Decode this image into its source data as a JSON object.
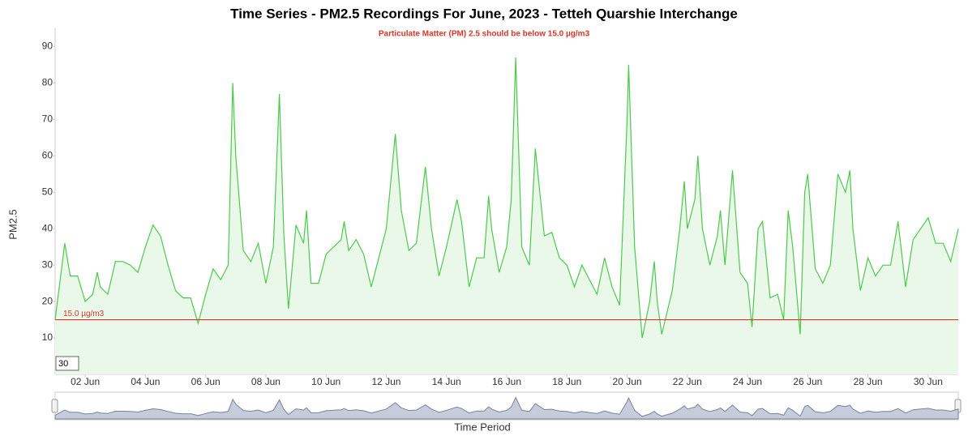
{
  "chart_data": {
    "type": "line",
    "title": "Time Series - PM2.5 Recordings For June, 2023 - Tetteh Quarshie Interchange",
    "subtitle": "Particulate Matter (PM) 2.5 should be below 15.0 µg/m3",
    "y_label": "PM2.5",
    "x_label": "Time Period",
    "range_label": "30",
    "color": "#4cc94c",
    "fill_color": "#eaf8ea",
    "threshold": {
      "value": 15,
      "label": "15.0 µg/m3",
      "color": "#d9352a"
    },
    "xlim": [
      1,
      31
    ],
    "ylim": [
      0,
      95
    ],
    "yticks": [
      10,
      20,
      30,
      40,
      50,
      60,
      70,
      80,
      90
    ],
    "xticks": [
      {
        "value": 2,
        "label": "02 Jun"
      },
      {
        "value": 4,
        "label": "04 Jun"
      },
      {
        "value": 6,
        "label": "06 Jun"
      },
      {
        "value": 8,
        "label": "08 Jun"
      },
      {
        "value": 10,
        "label": "10 Jun"
      },
      {
        "value": 12,
        "label": "12 Jun"
      },
      {
        "value": 14,
        "label": "14 Jun"
      },
      {
        "value": 16,
        "label": "16 Jun"
      },
      {
        "value": 18,
        "label": "18 Jun"
      },
      {
        "value": 20,
        "label": "20 Jun"
      },
      {
        "value": 22,
        "label": "22 Jun"
      },
      {
        "value": 24,
        "label": "24 Jun"
      },
      {
        "value": 26,
        "label": "26 Jun"
      },
      {
        "value": 28,
        "label": "28 Jun"
      },
      {
        "value": 30,
        "label": "30 Jun"
      }
    ],
    "x": [
      1.0,
      1.32,
      1.5,
      1.75,
      2.0,
      2.25,
      2.4,
      2.5,
      2.75,
      3.0,
      3.25,
      3.5,
      3.75,
      4.0,
      4.25,
      4.5,
      4.75,
      5.0,
      5.25,
      5.5,
      5.75,
      6.0,
      6.25,
      6.5,
      6.75,
      6.9,
      7.0,
      7.25,
      7.5,
      7.75,
      8.0,
      8.25,
      8.45,
      8.6,
      8.75,
      9.0,
      9.25,
      9.35,
      9.5,
      9.75,
      10.0,
      10.25,
      10.5,
      10.6,
      10.75,
      11.0,
      11.25,
      11.5,
      11.75,
      12.0,
      12.3,
      12.5,
      12.75,
      13.0,
      13.3,
      13.5,
      13.75,
      14.0,
      14.35,
      14.5,
      14.75,
      15.0,
      15.25,
      15.4,
      15.5,
      15.75,
      16.0,
      16.15,
      16.3,
      16.5,
      16.75,
      16.95,
      17.25,
      17.5,
      17.75,
      18.0,
      18.25,
      18.5,
      18.75,
      19.0,
      19.25,
      19.5,
      19.75,
      20.0,
      20.05,
      20.25,
      20.5,
      20.75,
      20.9,
      21.0,
      21.15,
      21.5,
      21.75,
      21.9,
      22.0,
      22.25,
      22.35,
      22.5,
      22.75,
      23.0,
      23.1,
      23.25,
      23.5,
      23.75,
      24.0,
      24.15,
      24.35,
      24.5,
      24.75,
      25.0,
      25.2,
      25.35,
      25.5,
      25.75,
      25.9,
      26.0,
      26.25,
      26.5,
      26.75,
      27.0,
      27.25,
      27.4,
      27.5,
      27.75,
      28.0,
      28.25,
      28.5,
      28.75,
      29.0,
      29.25,
      29.5,
      29.75,
      30.0,
      30.25,
      30.5,
      30.75,
      31.0
    ],
    "values": [
      15,
      36,
      27,
      27,
      20,
      22,
      28,
      24,
      22,
      31,
      31,
      30,
      28,
      35,
      41,
      38,
      30,
      23,
      21,
      21,
      14,
      22,
      29,
      26,
      30,
      80,
      60,
      34,
      31,
      36,
      25,
      35,
      77,
      38,
      18,
      41,
      36,
      45,
      25,
      25,
      33,
      35,
      37,
      42,
      34,
      37,
      33,
      24,
      32,
      40,
      66,
      45,
      34,
      36,
      57,
      40,
      27,
      35,
      48,
      42,
      24,
      32,
      32,
      49,
      40,
      28,
      35,
      48,
      87,
      35,
      30,
      62,
      38,
      39,
      32,
      30,
      24,
      30,
      26,
      22,
      32,
      24,
      19,
      70,
      85,
      35,
      10,
      20,
      31,
      20,
      11,
      23,
      40,
      53,
      40,
      48,
      60,
      40,
      30,
      38,
      45,
      30,
      56,
      28,
      25,
      13,
      40,
      42,
      21,
      22,
      15,
      45,
      35,
      11,
      50,
      55,
      29,
      25,
      30,
      55,
      50,
      56,
      40,
      23,
      32,
      27,
      30,
      30,
      42,
      24,
      37,
      40,
      43,
      36,
      36,
      31,
      40
    ]
  }
}
